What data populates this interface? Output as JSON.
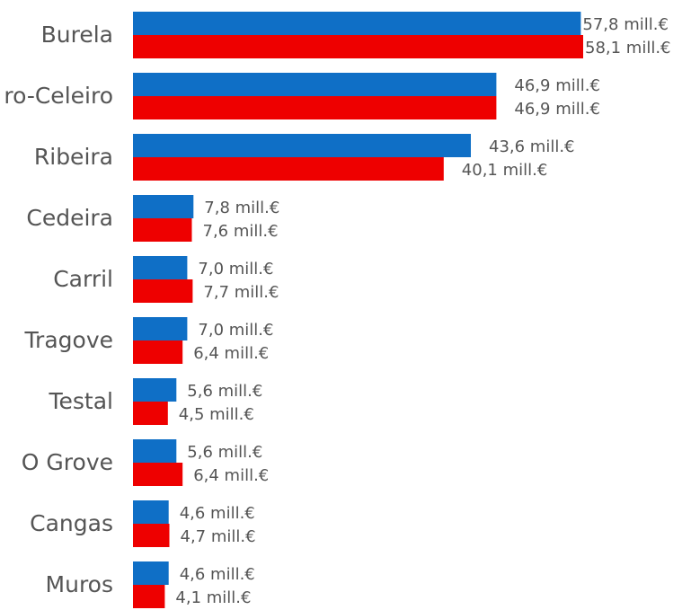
{
  "chart_data": {
    "type": "bar",
    "orientation": "horizontal",
    "categories": [
      "Burela",
      "ro-Celeiro",
      "Ribeira",
      "Cedeira",
      "Carril",
      "Tragove",
      "Testal",
      "O Grove",
      "Cangas",
      "Muros"
    ],
    "series": [
      {
        "color": "#0f6fc6",
        "values": [
          57.8,
          46.9,
          43.6,
          7.8,
          7.0,
          7.0,
          5.6,
          5.6,
          4.6,
          4.6
        ],
        "labels": [
          "57,8 mill.€",
          "46,9 mill.€",
          "43,6 mill.€",
          "7,8 mill.€",
          "7,0 mill.€",
          "7,0 mill.€",
          "5,6 mill.€",
          "5,6 mill.€",
          "4,6 mill.€",
          "4,6 mill.€"
        ]
      },
      {
        "color": "#ee0000",
        "values": [
          58.1,
          46.9,
          40.1,
          7.6,
          7.7,
          6.4,
          4.5,
          6.4,
          4.7,
          4.1
        ],
        "labels": [
          "58,1 mill.€",
          "46,9 mill.€",
          "40,1 mill.€",
          "7,6 mill.€",
          "7,7 mill.€",
          "6,4 mill.€",
          "4,5 mill.€",
          "6,4 mill.€",
          "4,7 mill.€",
          "4,1 mill.€"
        ]
      }
    ],
    "data_labels": true,
    "legend": "none",
    "grid": false,
    "xlim": [
      0,
      58.1
    ]
  }
}
